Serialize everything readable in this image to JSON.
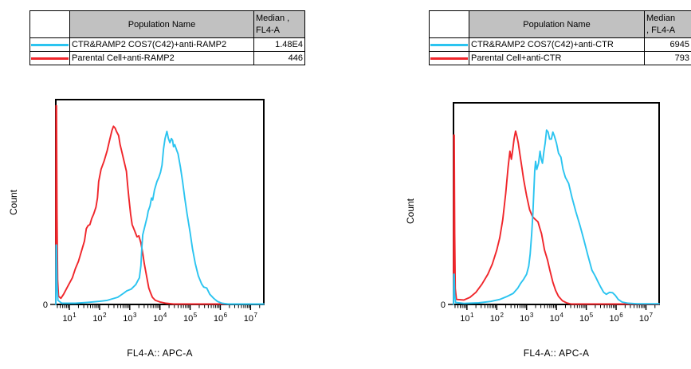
{
  "background": "#ffffff",
  "colors": {
    "cyan_series": "#2bc4f0",
    "red_series": "#f0262b",
    "table_header_bg": "#c1c1c1",
    "axis": "#000000"
  },
  "panels": [
    {
      "legend": {
        "header": {
          "corner": "",
          "population": "Population Name",
          "median_line1": "Median ,",
          "median_line2": "FL4-A"
        },
        "rows": [
          {
            "color": "#2bc4f0",
            "label": "CTR&RAMP2 COS7(C42)+anti-RAMP2",
            "median": "1.48E4"
          },
          {
            "color": "#f0262b",
            "label": "Parental Cell+anti-RAMP2",
            "median": "446"
          }
        ]
      }
    },
    {
      "legend": {
        "header": {
          "corner": "",
          "population": "Population Name",
          "median_line1": "Median",
          "median_line2": ", FL4-A"
        },
        "rows": [
          {
            "color": "#2bc4f0",
            "label": "CTR&RAMP2 COS7(C42)+anti-CTR",
            "median": "6945"
          },
          {
            "color": "#f0262b",
            "label": "Parental Cell+anti-CTR",
            "median": "793"
          }
        ]
      }
    }
  ],
  "chart_data": [
    {
      "type": "line",
      "subtype": "flow-cytometry-histogram",
      "xlabel": "FL4-A:: APC-A",
      "ylabel": "Count",
      "x_scale": "log10",
      "x_range_log10": [
        0.55,
        7.44
      ],
      "x_tick_exponents": [
        1,
        2,
        3,
        4,
        5,
        6,
        7
      ],
      "x_tick_labels": [
        "10^1",
        "10^2",
        "10^3",
        "10^4",
        "10^5",
        "10^6",
        "10^7"
      ],
      "y_range": [
        0,
        1
      ],
      "y_tick_labels": [
        "0"
      ],
      "grid": false,
      "legend_position": "table-above",
      "series": [
        {
          "name": "Parental Cell+anti-RAMP2",
          "median_fl4a": "446",
          "color": "#f0262b",
          "points": [
            [
              0.55,
              0
            ],
            [
              0.555,
              0.55
            ],
            [
              0.56,
              0.97
            ],
            [
              0.575,
              0.97
            ],
            [
              0.59,
              0.45
            ],
            [
              0.61,
              0.12
            ],
            [
              0.64,
              0.04
            ],
            [
              0.72,
              0.03
            ],
            [
              0.81,
              0.05
            ],
            [
              0.95,
              0.09
            ],
            [
              1.1,
              0.13
            ],
            [
              1.2,
              0.175
            ],
            [
              1.3,
              0.21
            ],
            [
              1.4,
              0.26
            ],
            [
              1.5,
              0.31
            ],
            [
              1.56,
              0.37
            ],
            [
              1.62,
              0.385
            ],
            [
              1.68,
              0.39
            ],
            [
              1.74,
              0.42
            ],
            [
              1.8,
              0.44
            ],
            [
              1.88,
              0.475
            ],
            [
              1.93,
              0.52
            ],
            [
              1.97,
              0.6
            ],
            [
              2.05,
              0.66
            ],
            [
              2.15,
              0.7
            ],
            [
              2.25,
              0.75
            ],
            [
              2.33,
              0.8
            ],
            [
              2.41,
              0.85
            ],
            [
              2.46,
              0.87
            ],
            [
              2.52,
              0.86
            ],
            [
              2.56,
              0.845
            ],
            [
              2.63,
              0.825
            ],
            [
              2.68,
              0.78
            ],
            [
              2.73,
              0.75
            ],
            [
              2.81,
              0.7
            ],
            [
              2.89,
              0.65
            ],
            [
              2.93,
              0.58
            ],
            [
              2.97,
              0.52
            ],
            [
              3.03,
              0.44
            ],
            [
              3.08,
              0.39
            ],
            [
              3.16,
              0.36
            ],
            [
              3.24,
              0.33
            ],
            [
              3.3,
              0.335
            ],
            [
              3.37,
              0.3
            ],
            [
              3.43,
              0.25
            ],
            [
              3.48,
              0.2
            ],
            [
              3.53,
              0.16
            ],
            [
              3.58,
              0.12
            ],
            [
              3.63,
              0.08
            ],
            [
              3.68,
              0.06
            ],
            [
              3.75,
              0.035
            ],
            [
              3.85,
              0.02
            ],
            [
              4.0,
              0.012
            ],
            [
              4.2,
              0.006
            ],
            [
              4.45,
              0.002
            ],
            [
              7.44,
              0.002
            ]
          ]
        },
        {
          "name": "CTR&RAMP2 COS7(C42)+anti-RAMP2",
          "median_fl4a": "1.48E4",
          "color": "#2bc4f0",
          "points": [
            [
              0.55,
              0
            ],
            [
              0.56,
              0.29
            ],
            [
              0.575,
              0.29
            ],
            [
              0.59,
              0.1
            ],
            [
              0.62,
              0.02
            ],
            [
              0.75,
              0.006
            ],
            [
              1.2,
              0.006
            ],
            [
              1.6,
              0.01
            ],
            [
              2.0,
              0.015
            ],
            [
              2.25,
              0.02
            ],
            [
              2.6,
              0.035
            ],
            [
              2.8,
              0.055
            ],
            [
              2.9,
              0.066
            ],
            [
              3.05,
              0.075
            ],
            [
              3.2,
              0.097
            ],
            [
              3.28,
              0.12
            ],
            [
              3.32,
              0.13
            ],
            [
              3.37,
              0.19
            ],
            [
              3.4,
              0.28
            ],
            [
              3.43,
              0.34
            ],
            [
              3.48,
              0.37
            ],
            [
              3.53,
              0.4
            ],
            [
              3.58,
              0.43
            ],
            [
              3.61,
              0.455
            ],
            [
              3.67,
              0.48
            ],
            [
              3.72,
              0.52
            ],
            [
              3.76,
              0.51
            ],
            [
              3.82,
              0.56
            ],
            [
              3.9,
              0.6
            ],
            [
              3.96,
              0.62
            ],
            [
              4.02,
              0.645
            ],
            [
              4.07,
              0.68
            ],
            [
              4.12,
              0.76
            ],
            [
              4.17,
              0.81
            ],
            [
              4.23,
              0.845
            ],
            [
              4.28,
              0.81
            ],
            [
              4.33,
              0.79
            ],
            [
              4.38,
              0.81
            ],
            [
              4.42,
              0.8
            ],
            [
              4.45,
              0.77
            ],
            [
              4.49,
              0.78
            ],
            [
              4.55,
              0.755
            ],
            [
              4.6,
              0.735
            ],
            [
              4.68,
              0.67
            ],
            [
              4.75,
              0.6
            ],
            [
              4.82,
              0.52
            ],
            [
              4.9,
              0.44
            ],
            [
              5.0,
              0.35
            ],
            [
              5.08,
              0.27
            ],
            [
              5.17,
              0.2
            ],
            [
              5.27,
              0.14
            ],
            [
              5.38,
              0.1
            ],
            [
              5.45,
              0.085
            ],
            [
              5.55,
              0.08
            ],
            [
              5.65,
              0.05
            ],
            [
              5.78,
              0.03
            ],
            [
              5.9,
              0.015
            ],
            [
              6.05,
              0.006
            ],
            [
              6.25,
              0.002
            ],
            [
              7.44,
              0.002
            ]
          ]
        }
      ]
    },
    {
      "type": "line",
      "subtype": "flow-cytometry-histogram",
      "xlabel": "FL4-A:: APC-A",
      "ylabel": "Count",
      "x_scale": "log10",
      "x_range_log10": [
        0.55,
        7.44
      ],
      "x_tick_exponents": [
        1,
        2,
        3,
        4,
        5,
        6,
        7
      ],
      "x_tick_labels": [
        "10^1",
        "10^2",
        "10^3",
        "10^4",
        "10^5",
        "10^6",
        "10^7"
      ],
      "y_range": [
        0,
        1
      ],
      "y_tick_labels": [
        "0"
      ],
      "grid": false,
      "legend_position": "table-above",
      "series": [
        {
          "name": "Parental Cell+anti-CTR",
          "median_fl4a": "793",
          "color": "#f0262b",
          "points": [
            [
              0.55,
              0
            ],
            [
              0.555,
              0.5
            ],
            [
              0.56,
              0.84
            ],
            [
              0.575,
              0.84
            ],
            [
              0.59,
              0.35
            ],
            [
              0.61,
              0.08
            ],
            [
              0.65,
              0.025
            ],
            [
              0.9,
              0.022
            ],
            [
              1.1,
              0.035
            ],
            [
              1.3,
              0.06
            ],
            [
              1.5,
              0.1
            ],
            [
              1.7,
              0.15
            ],
            [
              1.85,
              0.2
            ],
            [
              2.0,
              0.27
            ],
            [
              2.1,
              0.33
            ],
            [
              2.2,
              0.42
            ],
            [
              2.3,
              0.55
            ],
            [
              2.38,
              0.68
            ],
            [
              2.44,
              0.76
            ],
            [
              2.49,
              0.72
            ],
            [
              2.53,
              0.76
            ],
            [
              2.58,
              0.82
            ],
            [
              2.63,
              0.86
            ],
            [
              2.68,
              0.83
            ],
            [
              2.72,
              0.8
            ],
            [
              2.78,
              0.74
            ],
            [
              2.84,
              0.68
            ],
            [
              2.9,
              0.62
            ],
            [
              3.0,
              0.54
            ],
            [
              3.1,
              0.47
            ],
            [
              3.2,
              0.435
            ],
            [
              3.3,
              0.42
            ],
            [
              3.38,
              0.41
            ],
            [
              3.44,
              0.38
            ],
            [
              3.5,
              0.35
            ],
            [
              3.6,
              0.27
            ],
            [
              3.7,
              0.22
            ],
            [
              3.78,
              0.17
            ],
            [
              3.88,
              0.11
            ],
            [
              3.97,
              0.07
            ],
            [
              4.07,
              0.04
            ],
            [
              4.2,
              0.018
            ],
            [
              4.35,
              0.007
            ],
            [
              4.5,
              0.002
            ],
            [
              7.44,
              0.002
            ]
          ]
        },
        {
          "name": "CTR&RAMP2 COS7(C42)+anti-CTR",
          "median_fl4a": "6945",
          "color": "#2bc4f0",
          "points": [
            [
              0.55,
              0
            ],
            [
              0.56,
              0.15
            ],
            [
              0.575,
              0.15
            ],
            [
              0.59,
              0.05
            ],
            [
              0.62,
              0.01
            ],
            [
              0.9,
              0.005
            ],
            [
              1.4,
              0.008
            ],
            [
              1.8,
              0.015
            ],
            [
              2.1,
              0.025
            ],
            [
              2.35,
              0.04
            ],
            [
              2.55,
              0.055
            ],
            [
              2.7,
              0.08
            ],
            [
              2.8,
              0.105
            ],
            [
              2.9,
              0.125
            ],
            [
              3.0,
              0.15
            ],
            [
              3.07,
              0.19
            ],
            [
              3.12,
              0.25
            ],
            [
              3.17,
              0.35
            ],
            [
              3.21,
              0.45
            ],
            [
              3.24,
              0.55
            ],
            [
              3.27,
              0.66
            ],
            [
              3.3,
              0.71
            ],
            [
              3.34,
              0.67
            ],
            [
              3.4,
              0.7
            ],
            [
              3.45,
              0.76
            ],
            [
              3.49,
              0.72
            ],
            [
              3.53,
              0.7
            ],
            [
              3.58,
              0.76
            ],
            [
              3.62,
              0.8
            ],
            [
              3.67,
              0.865
            ],
            [
              3.72,
              0.855
            ],
            [
              3.77,
              0.82
            ],
            [
              3.83,
              0.82
            ],
            [
              3.88,
              0.855
            ],
            [
              3.93,
              0.835
            ],
            [
              4.0,
              0.8
            ],
            [
              4.07,
              0.75
            ],
            [
              4.15,
              0.73
            ],
            [
              4.22,
              0.67
            ],
            [
              4.3,
              0.63
            ],
            [
              4.41,
              0.6
            ],
            [
              4.52,
              0.53
            ],
            [
              4.65,
              0.46
            ],
            [
              4.79,
              0.39
            ],
            [
              4.92,
              0.32
            ],
            [
              5.05,
              0.245
            ],
            [
              5.19,
              0.17
            ],
            [
              5.3,
              0.14
            ],
            [
              5.4,
              0.11
            ],
            [
              5.48,
              0.087
            ],
            [
              5.58,
              0.06
            ],
            [
              5.67,
              0.05
            ],
            [
              5.78,
              0.06
            ],
            [
              5.88,
              0.058
            ],
            [
              5.97,
              0.045
            ],
            [
              6.07,
              0.025
            ],
            [
              6.2,
              0.012
            ],
            [
              6.4,
              0.006
            ],
            [
              6.7,
              0.003
            ],
            [
              7.44,
              0.003
            ]
          ]
        }
      ]
    }
  ]
}
